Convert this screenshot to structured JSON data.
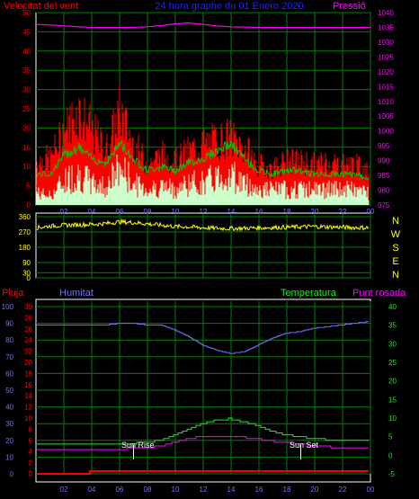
{
  "colors": {
    "wind": "#ff0000",
    "gust": "#ff0000",
    "avg": "#00cc00",
    "calm": "#ccffcc",
    "pressure": "#ff00ff",
    "direction": "#ffff00",
    "humidity": "#6f6fff",
    "rain": "#ff0000",
    "temp": "#00ff00",
    "dew": "#ff00ff",
    "grid": "#008000",
    "axis_left": "#ff0000",
    "axis_right": "#ff00ff",
    "axis_green": "#00ff00",
    "axis_blue": "#6f6fff",
    "dir_labels": "#ffff00",
    "title_blue": "#2222ff"
  },
  "chart_data": [
    {
      "type": "line",
      "title": "24 hora graphe du 01 Enero 2020",
      "left_label": "Velocitat del vent",
      "right_label": "Pressió",
      "x_ticks": [
        "02",
        "04",
        "06",
        "08",
        "10",
        "12",
        "14",
        "16",
        "18",
        "20",
        "22",
        "00"
      ],
      "ylim_left": [
        0,
        50
      ],
      "yticks_left": [
        0,
        5,
        10,
        15,
        20,
        25,
        30,
        35,
        40,
        45,
        50
      ],
      "ylim_right": [
        975,
        1040
      ],
      "yticks_right": [
        975,
        980,
        985,
        990,
        995,
        1000,
        1005,
        1010,
        1015,
        1020,
        1025,
        1030,
        1035,
        1040
      ],
      "hours": [
        0,
        1,
        2,
        3,
        4,
        5,
        6,
        7,
        8,
        9,
        10,
        11,
        12,
        13,
        14,
        15,
        16,
        17,
        18,
        19,
        20,
        21,
        22,
        23,
        24
      ],
      "series": [
        {
          "key": "gust",
          "values": [
            13,
            14,
            22,
            28,
            22,
            16,
            28,
            18,
            12,
            15,
            13,
            16,
            18,
            19,
            20,
            17,
            12,
            11,
            13,
            13,
            12,
            13,
            12,
            12,
            10
          ]
        },
        {
          "key": "avg",
          "values": [
            8,
            8,
            13,
            15,
            12,
            11,
            16,
            12,
            9,
            10,
            9,
            11,
            12,
            14,
            16,
            12,
            9,
            8,
            9,
            9,
            8,
            8,
            8,
            8,
            7
          ]
        },
        {
          "key": "calm",
          "values": [
            4,
            3,
            8,
            10,
            7,
            6,
            12,
            7,
            5,
            6,
            5,
            7,
            7,
            9,
            10,
            7,
            5,
            5,
            5,
            5,
            5,
            5,
            5,
            5,
            4
          ]
        },
        {
          "key": "pressure",
          "values": [
            1036,
            1035.8,
            1035.5,
            1035.2,
            1035,
            1035,
            1035,
            1035,
            1035.2,
            1035.6,
            1036.2,
            1036.5,
            1036,
            1035.5,
            1035.2,
            1035.1,
            1035,
            1035,
            1035,
            1035,
            1035,
            1035,
            1035,
            1035,
            1035
          ]
        }
      ]
    },
    {
      "type": "line",
      "ylim": [
        0,
        360
      ],
      "yticks": [
        0,
        30,
        90,
        180,
        270,
        360
      ],
      "direction_labels": [
        "N",
        "W",
        "S",
        "E",
        "N"
      ],
      "hours": [
        0,
        1,
        2,
        3,
        4,
        5,
        6,
        7,
        8,
        9,
        10,
        11,
        12,
        13,
        14,
        15,
        16,
        17,
        18,
        19,
        20,
        21,
        22,
        23,
        24
      ],
      "series": [
        {
          "key": "direction",
          "values": [
            295,
            305,
            310,
            312,
            315,
            320,
            330,
            325,
            318,
            310,
            302,
            300,
            295,
            292,
            290,
            292,
            294,
            296,
            298,
            300,
            302,
            300,
            298,
            296,
            295
          ]
        }
      ]
    },
    {
      "type": "line",
      "labels": {
        "rain": "Pluja",
        "humidity": "Humitat",
        "temp": "Temperatura",
        "dew": "Punt rosada"
      },
      "annotations": {
        "sunrise": "Sun Rise",
        "sunset": "Sun Set"
      },
      "sunrise_hour": 7,
      "sunset_hour": 19,
      "x_ticks": [
        "02",
        "04",
        "06",
        "08",
        "10",
        "12",
        "14",
        "16",
        "18",
        "20",
        "22",
        "00"
      ],
      "ylim_hum": [
        0,
        100
      ],
      "yticks_hum": [
        0,
        10,
        20,
        30,
        40,
        50,
        60,
        70,
        80,
        90,
        100
      ],
      "ylim_rain": [
        0,
        30
      ],
      "yticks_rain": [
        0,
        2,
        4,
        6,
        8,
        10,
        12,
        14,
        16,
        18,
        20,
        22,
        24,
        26,
        28,
        30
      ],
      "ylim_temp": [
        -5,
        40
      ],
      "yticks_temp": [
        -5,
        0,
        5,
        10,
        15,
        20,
        25,
        30,
        35,
        40
      ],
      "hours": [
        0,
        1,
        2,
        3,
        4,
        5,
        6,
        7,
        8,
        9,
        10,
        11,
        12,
        13,
        14,
        15,
        16,
        17,
        18,
        19,
        20,
        21,
        22,
        23,
        24
      ],
      "series": [
        {
          "key": "humidity",
          "values": [
            89,
            89,
            89,
            89,
            89,
            89,
            90,
            90,
            89,
            89,
            86,
            82,
            77,
            74,
            72,
            73,
            77,
            81,
            84,
            85,
            87,
            88,
            89,
            90,
            91
          ]
        },
        {
          "key": "temp",
          "values": [
            3,
            3,
            3,
            3,
            3,
            3,
            3,
            3.2,
            3.5,
            4,
            5.5,
            7,
            8.5,
            9.5,
            9.8,
            9,
            8,
            6.5,
            5.5,
            5,
            4.5,
            4.2,
            4,
            3.8,
            3.8
          ]
        },
        {
          "key": "dew",
          "values": [
            1.7,
            1.7,
            1.7,
            1.7,
            1.7,
            1.7,
            1.7,
            1.8,
            2,
            2.5,
            3.5,
            4.5,
            5,
            5.2,
            5,
            4.8,
            4.4,
            3.8,
            3.4,
            3,
            2.6,
            2.3,
            2.1,
            2,
            2
          ]
        },
        {
          "key": "rain",
          "values": [
            0,
            0,
            0,
            0,
            0.3,
            0.3,
            0.3,
            0.3,
            0.3,
            0.3,
            0.3,
            0.3,
            0.3,
            0.3,
            0.3,
            0.3,
            0.3,
            0.3,
            0.3,
            0.3,
            0.3,
            0.3,
            0.3,
            0.3,
            0.3
          ]
        }
      ]
    }
  ]
}
